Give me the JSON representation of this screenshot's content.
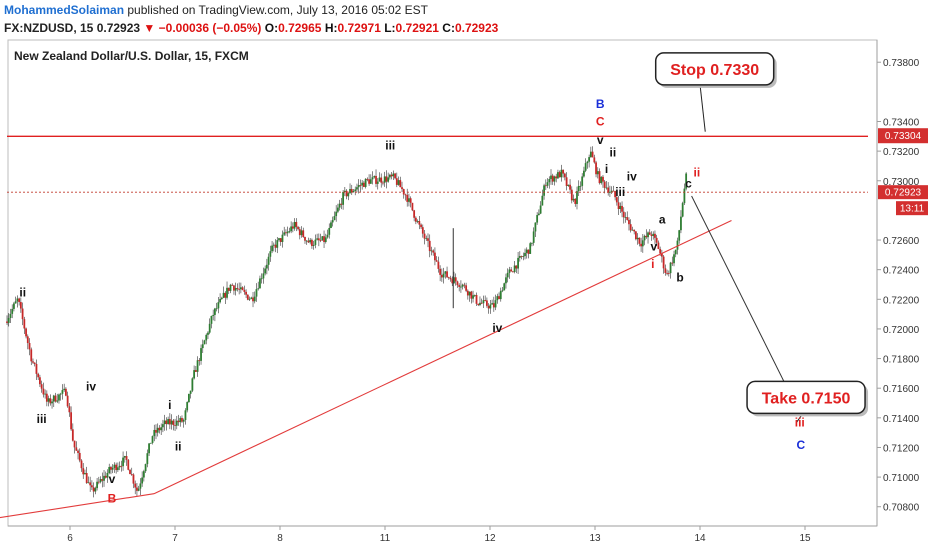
{
  "header": {
    "author": "MohammedSolaiman",
    "published_text": "published on TradingView.com, July 13, 2016 05:02 EST",
    "symbol": "FX:NZDUSD, 15",
    "last": "0.72923",
    "change": "▼ −0.00036 (−0.05%)",
    "o_label": "O:",
    "o_value": "0.72965",
    "h_label": "H:",
    "h_value": "0.72971",
    "l_label": "L:",
    "l_value": "0.72921",
    "c_label": "C:",
    "c_value": "0.72923"
  },
  "chart_data": {
    "type": "candlestick",
    "title": "New Zealand Dollar/U.S. Dollar, 15, FXCM",
    "ylim": [
      0.7067,
      0.7395
    ],
    "y_ticks": [
      "0.73800",
      "0.73400",
      "0.73200",
      "0.73000",
      "0.72600",
      "0.72400",
      "0.72200",
      "0.72000",
      "0.71800",
      "0.71600",
      "0.71400",
      "0.71200",
      "0.71000",
      "0.70800"
    ],
    "y_tick_values": [
      0.738,
      0.734,
      0.732,
      0.73,
      0.726,
      0.724,
      0.722,
      0.72,
      0.718,
      0.716,
      0.714,
      0.712,
      0.71,
      0.708
    ],
    "x_ticks": [
      "6",
      "7",
      "8",
      "11",
      "12",
      "13",
      "14",
      "15"
    ],
    "x_tick_values": [
      6,
      7,
      8,
      9,
      10,
      11,
      12,
      13
    ],
    "xlim": [
      5.4,
      13.6
    ],
    "current_price_label": "0.72923",
    "current_price": 0.72923,
    "countdown_label": "13:11",
    "stop_price_label": "0.73304",
    "stop_price": 0.73304,
    "price_path": [
      [
        5.4,
        0.7205
      ],
      [
        5.52,
        0.722
      ],
      [
        5.65,
        0.718
      ],
      [
        5.8,
        0.715
      ],
      [
        5.98,
        0.7158
      ],
      [
        6.05,
        0.7122
      ],
      [
        6.22,
        0.709
      ],
      [
        6.4,
        0.7105
      ],
      [
        6.55,
        0.7112
      ],
      [
        6.66,
        0.709
      ],
      [
        6.8,
        0.7128
      ],
      [
        6.92,
        0.7136
      ],
      [
        7.1,
        0.7138
      ],
      [
        7.2,
        0.717
      ],
      [
        7.38,
        0.721
      ],
      [
        7.55,
        0.723
      ],
      [
        7.75,
        0.722
      ],
      [
        7.95,
        0.7255
      ],
      [
        8.15,
        0.727
      ],
      [
        8.3,
        0.7258
      ],
      [
        8.45,
        0.726
      ],
      [
        8.62,
        0.729
      ],
      [
        8.85,
        0.73
      ],
      [
        9.1,
        0.7302
      ],
      [
        9.22,
        0.729
      ],
      [
        9.35,
        0.7268
      ],
      [
        9.55,
        0.7238
      ],
      [
        9.75,
        0.723
      ],
      [
        9.9,
        0.7218
      ],
      [
        10.05,
        0.7215
      ],
      [
        10.2,
        0.7238
      ],
      [
        10.4,
        0.7255
      ],
      [
        10.55,
        0.73
      ],
      [
        10.7,
        0.7305
      ],
      [
        10.82,
        0.7285
      ],
      [
        10.88,
        0.7298
      ],
      [
        10.97,
        0.732
      ],
      [
        11.05,
        0.7302
      ],
      [
        11.2,
        0.729
      ],
      [
        11.3,
        0.7275
      ],
      [
        11.45,
        0.7258
      ],
      [
        11.55,
        0.7265
      ],
      [
        11.62,
        0.7255
      ],
      [
        11.7,
        0.7236
      ],
      [
        11.8,
        0.7256
      ],
      [
        11.88,
        0.7302
      ]
    ],
    "spikes": [
      {
        "x": 9.65,
        "low": 0.7214,
        "high": 0.7268
      }
    ],
    "lines": [
      {
        "name": "stop-level-line",
        "x1": 5.4,
        "y1": 0.733,
        "x2": 13.6,
        "y2": 0.733,
        "color": "#e02020",
        "width": 1.3
      },
      {
        "name": "current-price-line",
        "x1": 5.4,
        "y1": 0.72923,
        "x2": 13.6,
        "y2": 0.72923,
        "color": "#c0392b",
        "width": 0.9,
        "dash": "2,2"
      },
      {
        "name": "trend-line-upper",
        "x1": 6.8,
        "y1": 0.70888,
        "x2": 12.3,
        "y2": 0.72732,
        "color": "#e23b3b",
        "width": 1.1
      },
      {
        "name": "trend-line-lower",
        "x1": 5.0,
        "y1": 0.7069,
        "x2": 6.8,
        "y2": 0.70888,
        "color": "#e23b3b",
        "width": 1.1
      },
      {
        "name": "projection-arrow",
        "x1": 11.92,
        "y1": 0.72897,
        "x2": 12.95,
        "y2": 0.71431,
        "color": "#333333",
        "width": 1,
        "arrow": true
      },
      {
        "name": "stop-callout-pointer",
        "x1": 12.0,
        "y1": 0.7365,
        "x2": 12.05,
        "y2": 0.73331,
        "color": "#222222",
        "width": 1
      },
      {
        "name": "take-callout-pointer",
        "x1": 12.99,
        "y1": 0.7144,
        "x2": 12.92,
        "y2": 0.7137,
        "color": "#222222",
        "width": 1
      }
    ],
    "callouts": [
      {
        "name": "stop-callout",
        "text": "Stop 0.7330",
        "x": 12.14,
        "y": 0.73755
      },
      {
        "name": "take-callout",
        "text": "Take 0.7150",
        "x": 13.01,
        "y": 0.71538
      }
    ],
    "annotations": [
      {
        "text": "ii",
        "x": 5.55,
        "y": 0.7222,
        "color": "#111111"
      },
      {
        "text": "iv",
        "x": 6.2,
        "y": 0.71585,
        "color": "#111111"
      },
      {
        "text": "iii",
        "x": 5.73,
        "y": 0.71365,
        "color": "#111111"
      },
      {
        "text": "v",
        "x": 6.4,
        "y": 0.7096,
        "color": "#111111"
      },
      {
        "text": "B",
        "x": 6.4,
        "y": 0.7083,
        "color": "#e02020"
      },
      {
        "text": "i",
        "x": 6.95,
        "y": 0.7146,
        "color": "#111111"
      },
      {
        "text": "ii",
        "x": 7.03,
        "y": 0.7118,
        "color": "#111111"
      },
      {
        "text": "iii",
        "x": 9.05,
        "y": 0.7321,
        "color": "#111111"
      },
      {
        "text": "iv",
        "x": 10.07,
        "y": 0.7198,
        "color": "#111111"
      },
      {
        "text": "B",
        "x": 11.05,
        "y": 0.73492,
        "color": "#1a2fd8"
      },
      {
        "text": "C",
        "x": 11.05,
        "y": 0.73372,
        "color": "#e02020"
      },
      {
        "text": "v",
        "x": 11.05,
        "y": 0.73249,
        "color": "#111111"
      },
      {
        "text": "ii",
        "x": 11.17,
        "y": 0.73165,
        "color": "#111111"
      },
      {
        "text": "i",
        "x": 11.11,
        "y": 0.73052,
        "color": "#111111"
      },
      {
        "text": "iv",
        "x": 11.35,
        "y": 0.73002,
        "color": "#111111"
      },
      {
        "text": "iii",
        "x": 11.24,
        "y": 0.72896,
        "color": "#111111"
      },
      {
        "text": "a",
        "x": 11.64,
        "y": 0.72712,
        "color": "#111111"
      },
      {
        "text": "v",
        "x": 11.56,
        "y": 0.7253,
        "color": "#111111"
      },
      {
        "text": "i",
        "x": 11.55,
        "y": 0.7241,
        "color": "#e02020"
      },
      {
        "text": "b",
        "x": 11.81,
        "y": 0.7232,
        "color": "#111111"
      },
      {
        "text": "c",
        "x": 11.89,
        "y": 0.72955,
        "color": "#111111"
      },
      {
        "text": "ii",
        "x": 11.97,
        "y": 0.7303,
        "color": "#e02020"
      },
      {
        "text": "iii",
        "x": 12.95,
        "y": 0.7134,
        "color": "#e02020"
      },
      {
        "text": "C",
        "x": 12.96,
        "y": 0.7119,
        "color": "#1a2fd8"
      }
    ]
  },
  "colors": {
    "stop_line": "#e02020",
    "trend_line": "#e23b3b",
    "up_candle": "#2e7d32",
    "down_candle": "#c62828",
    "wave_blue": "#1a2fd8",
    "wave_red": "#e02020",
    "price_badge": "#d32f2f"
  }
}
